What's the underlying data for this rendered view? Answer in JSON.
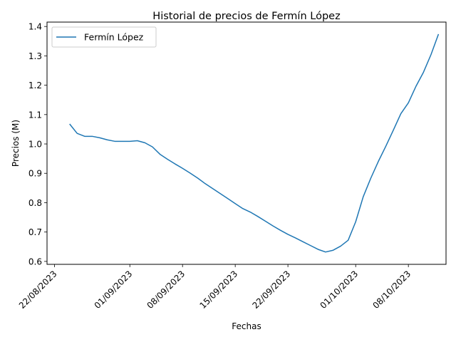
{
  "chart_data": {
    "type": "line",
    "title": "Historial de precios de Fermín López",
    "xlabel": "Fechas",
    "ylabel": "Precios (M)",
    "xlim": [
      "2023-08-21",
      "2023-10-13"
    ],
    "ylim": [
      0.59,
      1.415
    ],
    "grid": false,
    "legend": "upper-left",
    "x_ticks": [
      "22/08/2023",
      "01/09/2023",
      "08/09/2023",
      "15/09/2023",
      "22/09/2023",
      "01/10/2023",
      "08/10/2023"
    ],
    "y_ticks": [
      "0.6",
      "0.7",
      "0.8",
      "0.9",
      "1.0",
      "1.1",
      "1.2",
      "1.3",
      "1.4"
    ],
    "series": [
      {
        "name": "Fermín López",
        "color": "#1f77b4",
        "x": [
          "2023-08-24",
          "2023-08-25",
          "2023-08-26",
          "2023-08-27",
          "2023-08-28",
          "2023-08-29",
          "2023-08-30",
          "2023-08-31",
          "2023-09-01",
          "2023-09-02",
          "2023-09-03",
          "2023-09-04",
          "2023-09-05",
          "2023-09-06",
          "2023-09-07",
          "2023-09-08",
          "2023-09-09",
          "2023-09-10",
          "2023-09-11",
          "2023-09-12",
          "2023-09-13",
          "2023-09-14",
          "2023-09-15",
          "2023-09-16",
          "2023-09-17",
          "2023-09-18",
          "2023-09-19",
          "2023-09-20",
          "2023-09-21",
          "2023-09-22",
          "2023-09-23",
          "2023-09-24",
          "2023-09-25",
          "2023-09-26",
          "2023-09-27",
          "2023-09-28",
          "2023-09-29",
          "2023-09-30",
          "2023-10-01",
          "2023-10-02",
          "2023-10-03",
          "2023-10-04",
          "2023-10-05",
          "2023-10-06",
          "2023-10-07",
          "2023-10-08",
          "2023-10-09",
          "2023-10-10",
          "2023-10-11",
          "2023-10-12"
        ],
        "values": [
          1.068,
          1.036,
          1.026,
          1.026,
          1.021,
          1.014,
          1.009,
          1.009,
          1.009,
          1.011,
          1.004,
          0.99,
          0.965,
          0.948,
          0.932,
          0.917,
          0.901,
          0.884,
          0.865,
          0.848,
          0.831,
          0.814,
          0.797,
          0.78,
          0.768,
          0.753,
          0.737,
          0.721,
          0.706,
          0.692,
          0.68,
          0.667,
          0.654,
          0.641,
          0.632,
          0.638,
          0.652,
          0.672,
          0.735,
          0.82,
          0.883,
          0.94,
          0.992,
          1.047,
          1.103,
          1.14,
          1.196,
          1.244,
          1.304,
          1.374
        ]
      }
    ]
  }
}
